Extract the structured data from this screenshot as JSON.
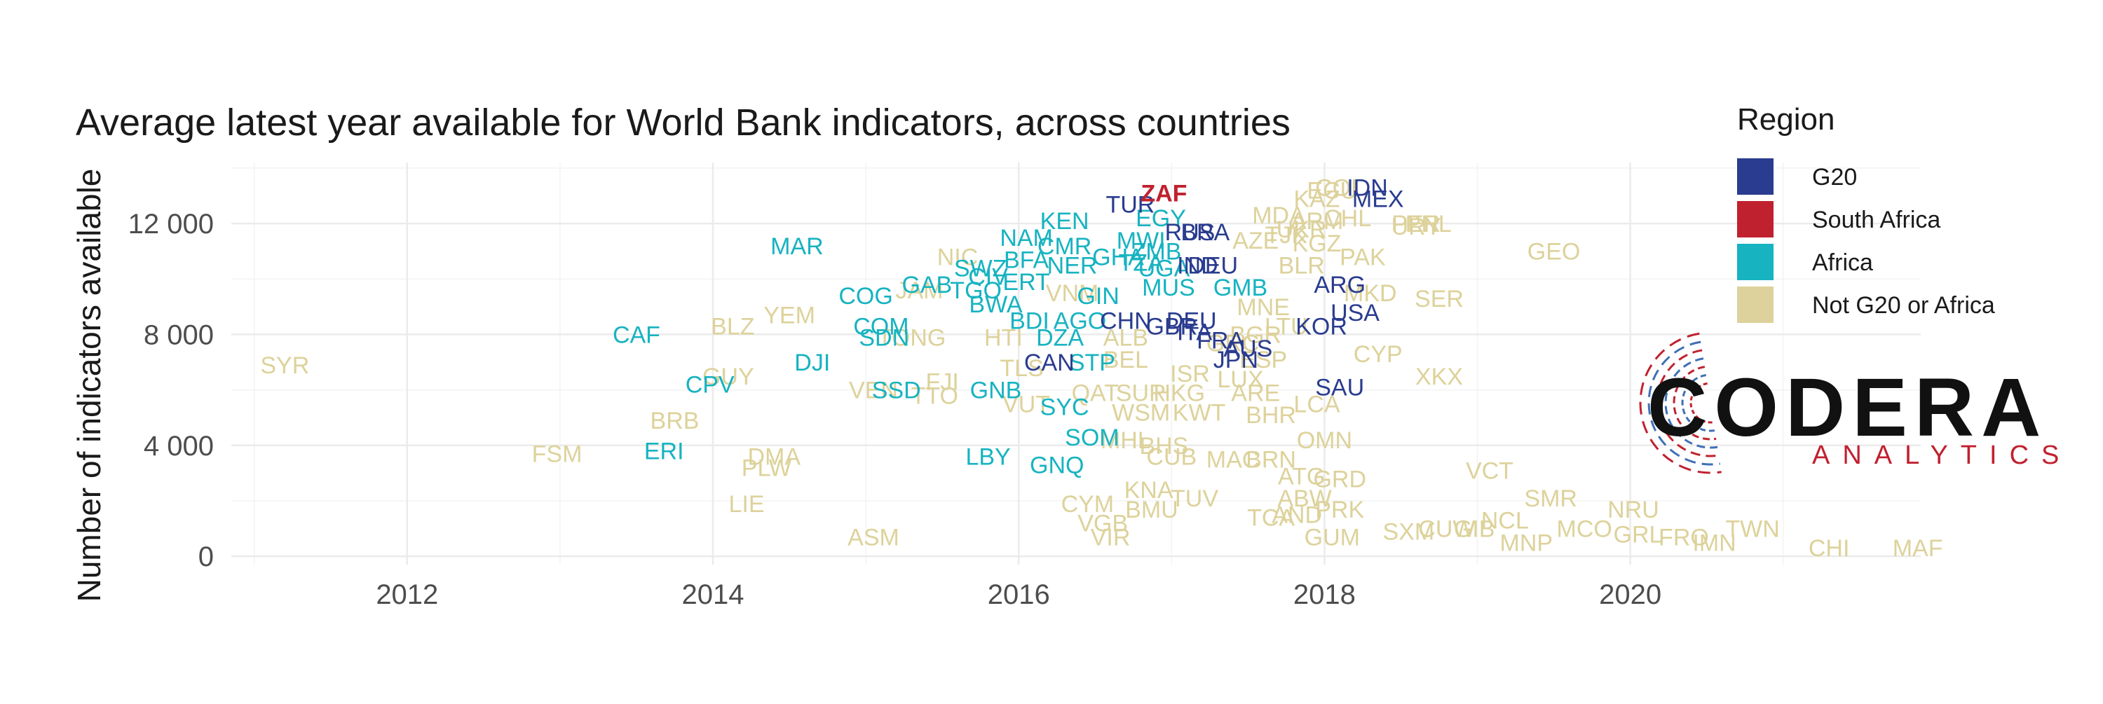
{
  "chart_data": {
    "type": "scatter",
    "title": "Average latest year available for World Bank indicators, across countries",
    "xlabel": "",
    "ylabel": "Number of indicators available",
    "xlim": [
      2010.85,
      2021.9
    ],
    "ylim": [
      -300,
      14200
    ],
    "x_ticks": [
      2012,
      2014,
      2016,
      2018,
      2020
    ],
    "y_ticks": [
      0,
      4000,
      8000,
      12000
    ],
    "y_tick_labels": [
      "0",
      "4 000",
      "8 000",
      "12 000"
    ],
    "grid": true,
    "legend": {
      "title": "Region",
      "position": "right",
      "items": [
        {
          "key": "g20",
          "label": "G20",
          "color": "#2a3c8f"
        },
        {
          "key": "za",
          "label": "South Africa",
          "color": "#c0212f"
        },
        {
          "key": "africa",
          "label": "Africa",
          "color": "#17b3c1"
        },
        {
          "key": "other",
          "label": "Not G20 or Africa",
          "color": "#ddd29b"
        }
      ]
    },
    "points": [
      {
        "label": "ZAF",
        "x": 16.95,
        "y": 13100,
        "g": "za"
      },
      {
        "label": "TUR",
        "x": 16.73,
        "y": 12700,
        "g": "g20"
      },
      {
        "label": "IDN",
        "x": 18.28,
        "y": 13300,
        "g": "g20"
      },
      {
        "label": "MEX",
        "x": 18.35,
        "y": 12900,
        "g": "g20"
      },
      {
        "label": "RUS",
        "x": 17.12,
        "y": 11700,
        "g": "g20"
      },
      {
        "label": "BRA",
        "x": 17.22,
        "y": 11700,
        "g": "g20"
      },
      {
        "label": "IND",
        "x": 17.17,
        "y": 10500,
        "g": "g20"
      },
      {
        "label": "DEU",
        "x": 17.27,
        "y": 10500,
        "g": "g20"
      },
      {
        "label": "ARG",
        "x": 18.1,
        "y": 9800,
        "g": "g20"
      },
      {
        "label": "USA",
        "x": 18.2,
        "y": 8800,
        "g": "g20"
      },
      {
        "label": "KOR",
        "x": 17.98,
        "y": 8300,
        "g": "g20"
      },
      {
        "label": "CHN",
        "x": 16.7,
        "y": 8500,
        "g": "g20"
      },
      {
        "label": "DEU",
        "x": 17.13,
        "y": 8500,
        "g": "g20"
      },
      {
        "label": "GBR",
        "x": 17.0,
        "y": 8300,
        "g": "g20"
      },
      {
        "label": "ITA",
        "x": 17.15,
        "y": 8100,
        "g": "g20"
      },
      {
        "label": "FRA",
        "x": 17.32,
        "y": 7800,
        "g": "g20"
      },
      {
        "label": "AUS",
        "x": 17.5,
        "y": 7500,
        "g": "g20"
      },
      {
        "label": "JPN",
        "x": 17.42,
        "y": 7100,
        "g": "g20"
      },
      {
        "label": "CAN",
        "x": 16.2,
        "y": 7000,
        "g": "g20"
      },
      {
        "label": "SAU",
        "x": 18.1,
        "y": 6100,
        "g": "g20"
      },
      {
        "label": "MAR",
        "x": 14.55,
        "y": 11200,
        "g": "africa"
      },
      {
        "label": "KEN",
        "x": 16.3,
        "y": 12100,
        "g": "africa"
      },
      {
        "label": "EGY",
        "x": 16.93,
        "y": 12200,
        "g": "africa"
      },
      {
        "label": "NAM",
        "x": 16.05,
        "y": 11500,
        "g": "africa"
      },
      {
        "label": "CMR",
        "x": 16.3,
        "y": 11200,
        "g": "africa"
      },
      {
        "label": "BFA",
        "x": 16.05,
        "y": 10700,
        "g": "africa"
      },
      {
        "label": "NER",
        "x": 16.35,
        "y": 10500,
        "g": "africa"
      },
      {
        "label": "SWZ",
        "x": 15.75,
        "y": 10400,
        "g": "africa"
      },
      {
        "label": "CIV",
        "x": 15.8,
        "y": 10100,
        "g": "africa"
      },
      {
        "label": "ERT",
        "x": 16.05,
        "y": 9900,
        "g": "africa"
      },
      {
        "label": "GAB",
        "x": 15.4,
        "y": 9800,
        "g": "africa"
      },
      {
        "label": "COG",
        "x": 15.0,
        "y": 9400,
        "g": "africa"
      },
      {
        "label": "TGO",
        "x": 15.72,
        "y": 9600,
        "g": "africa"
      },
      {
        "label": "BWA",
        "x": 15.85,
        "y": 9100,
        "g": "africa"
      },
      {
        "label": "GIN",
        "x": 16.52,
        "y": 9400,
        "g": "africa"
      },
      {
        "label": "MUS",
        "x": 16.98,
        "y": 9700,
        "g": "africa"
      },
      {
        "label": "GMB",
        "x": 17.45,
        "y": 9700,
        "g": "africa"
      },
      {
        "label": "MWI",
        "x": 16.8,
        "y": 11400,
        "g": "africa"
      },
      {
        "label": "ZMB",
        "x": 16.9,
        "y": 11000,
        "g": "africa"
      },
      {
        "label": "GHA",
        "x": 16.65,
        "y": 10800,
        "g": "africa"
      },
      {
        "label": "TZA",
        "x": 16.8,
        "y": 10600,
        "g": "africa"
      },
      {
        "label": "UGA",
        "x": 16.95,
        "y": 10400,
        "g": "africa"
      },
      {
        "label": "BDI",
        "x": 16.07,
        "y": 8500,
        "g": "africa"
      },
      {
        "label": "AGO",
        "x": 16.4,
        "y": 8500,
        "g": "africa"
      },
      {
        "label": "COM",
        "x": 15.1,
        "y": 8300,
        "g": "africa"
      },
      {
        "label": "SDN",
        "x": 15.12,
        "y": 7900,
        "g": "africa"
      },
      {
        "label": "DZA",
        "x": 16.27,
        "y": 7900,
        "g": "africa"
      },
      {
        "label": "STP",
        "x": 16.48,
        "y": 7000,
        "g": "africa"
      },
      {
        "label": "CAF",
        "x": 13.5,
        "y": 8000,
        "g": "africa"
      },
      {
        "label": "DJI",
        "x": 14.65,
        "y": 7000,
        "g": "africa"
      },
      {
        "label": "CPV",
        "x": 13.98,
        "y": 6200,
        "g": "africa"
      },
      {
        "label": "SSD",
        "x": 15.2,
        "y": 6000,
        "g": "africa"
      },
      {
        "label": "GNB",
        "x": 15.85,
        "y": 6000,
        "g": "africa"
      },
      {
        "label": "SYC",
        "x": 16.3,
        "y": 5400,
        "g": "africa"
      },
      {
        "label": "SOM",
        "x": 16.48,
        "y": 4300,
        "g": "africa"
      },
      {
        "label": "ERI",
        "x": 13.68,
        "y": 3800,
        "g": "africa"
      },
      {
        "label": "LBY",
        "x": 15.8,
        "y": 3600,
        "g": "africa"
      },
      {
        "label": "GNQ",
        "x": 16.25,
        "y": 3300,
        "g": "africa"
      },
      {
        "label": "SYR",
        "x": 11.2,
        "y": 6900,
        "g": "other"
      },
      {
        "label": "FSM",
        "x": 12.98,
        "y": 3700,
        "g": "other"
      },
      {
        "label": "BRB",
        "x": 13.75,
        "y": 4900,
        "g": "other"
      },
      {
        "label": "GUY",
        "x": 14.1,
        "y": 6500,
        "g": "other"
      },
      {
        "label": "BLZ",
        "x": 14.13,
        "y": 8300,
        "g": "other"
      },
      {
        "label": "YEM",
        "x": 14.5,
        "y": 8700,
        "g": "other"
      },
      {
        "label": "DMA",
        "x": 14.4,
        "y": 3600,
        "g": "other"
      },
      {
        "label": "PLW",
        "x": 14.35,
        "y": 3200,
        "g": "other"
      },
      {
        "label": "LIE",
        "x": 14.22,
        "y": 1900,
        "g": "other"
      },
      {
        "label": "ASM",
        "x": 15.05,
        "y": 700,
        "g": "other"
      },
      {
        "label": "NIC",
        "x": 15.6,
        "y": 10800,
        "g": "other"
      },
      {
        "label": "JAM",
        "x": 15.35,
        "y": 9600,
        "g": "other"
      },
      {
        "label": "TONG",
        "x": 15.3,
        "y": 7900,
        "g": "other"
      },
      {
        "label": "VEN",
        "x": 15.05,
        "y": 6000,
        "g": "other"
      },
      {
        "label": "FJI",
        "x": 15.5,
        "y": 6300,
        "g": "other"
      },
      {
        "label": "TTO",
        "x": 15.45,
        "y": 5800,
        "g": "other"
      },
      {
        "label": "HTI",
        "x": 15.9,
        "y": 7900,
        "g": "other"
      },
      {
        "label": "TLS",
        "x": 16.02,
        "y": 6800,
        "g": "other"
      },
      {
        "label": "VUT",
        "x": 16.05,
        "y": 5500,
        "g": "other"
      },
      {
        "label": "VNM",
        "x": 16.35,
        "y": 9500,
        "g": "other"
      },
      {
        "label": "ALB",
        "x": 16.7,
        "y": 7900,
        "g": "other"
      },
      {
        "label": "BEL",
        "x": 16.7,
        "y": 7100,
        "g": "other"
      },
      {
        "label": "QAT",
        "x": 16.5,
        "y": 5900,
        "g": "other"
      },
      {
        "label": "SUR",
        "x": 16.8,
        "y": 5900,
        "g": "other"
      },
      {
        "label": "HKG",
        "x": 17.05,
        "y": 5900,
        "g": "other"
      },
      {
        "label": "ISR",
        "x": 17.12,
        "y": 6600,
        "g": "other"
      },
      {
        "label": "WSM",
        "x": 16.8,
        "y": 5200,
        "g": "other"
      },
      {
        "label": "KWT",
        "x": 17.18,
        "y": 5200,
        "g": "other"
      },
      {
        "label": "MHL",
        "x": 16.7,
        "y": 4200,
        "g": "other"
      },
      {
        "label": "BHS",
        "x": 16.95,
        "y": 4000,
        "g": "other"
      },
      {
        "label": "CUB",
        "x": 17.0,
        "y": 3600,
        "g": "other"
      },
      {
        "label": "MAC",
        "x": 17.4,
        "y": 3500,
        "g": "other"
      },
      {
        "label": "BRN",
        "x": 17.65,
        "y": 3500,
        "g": "other"
      },
      {
        "label": "KNA",
        "x": 16.85,
        "y": 2400,
        "g": "other"
      },
      {
        "label": "TUV",
        "x": 17.15,
        "y": 2100,
        "g": "other"
      },
      {
        "label": "CYM",
        "x": 16.45,
        "y": 1900,
        "g": "other"
      },
      {
        "label": "BMU",
        "x": 16.87,
        "y": 1700,
        "g": "other"
      },
      {
        "label": "VGB",
        "x": 16.55,
        "y": 1200,
        "g": "other"
      },
      {
        "label": "VIR",
        "x": 16.6,
        "y": 700,
        "g": "other"
      },
      {
        "label": "ARE",
        "x": 17.55,
        "y": 5900,
        "g": "other"
      },
      {
        "label": "BHR",
        "x": 17.65,
        "y": 5100,
        "g": "other"
      },
      {
        "label": "LCA",
        "x": 17.95,
        "y": 5500,
        "g": "other"
      },
      {
        "label": "OMN",
        "x": 18.0,
        "y": 4200,
        "g": "other"
      },
      {
        "label": "ATG",
        "x": 17.85,
        "y": 2900,
        "g": "other"
      },
      {
        "label": "GRD",
        "x": 18.1,
        "y": 2800,
        "g": "other"
      },
      {
        "label": "ABW",
        "x": 17.87,
        "y": 2100,
        "g": "other"
      },
      {
        "label": "PRK",
        "x": 18.1,
        "y": 1700,
        "g": "other"
      },
      {
        "label": "TCA",
        "x": 17.65,
        "y": 1400,
        "g": "other"
      },
      {
        "label": "AND",
        "x": 17.82,
        "y": 1500,
        "g": "other"
      },
      {
        "label": "GUM",
        "x": 18.05,
        "y": 700,
        "g": "other"
      },
      {
        "label": "SXM",
        "x": 18.55,
        "y": 900,
        "g": "other"
      },
      {
        "label": "CUW",
        "x": 18.8,
        "y": 1000,
        "g": "other"
      },
      {
        "label": "GIB",
        "x": 18.98,
        "y": 1000,
        "g": "other"
      },
      {
        "label": "NCL",
        "x": 19.18,
        "y": 1300,
        "g": "other"
      },
      {
        "label": "MNP",
        "x": 19.32,
        "y": 500,
        "g": "other"
      },
      {
        "label": "MCO",
        "x": 19.7,
        "y": 1000,
        "g": "other"
      },
      {
        "label": "SMR",
        "x": 19.48,
        "y": 2100,
        "g": "other"
      },
      {
        "label": "VCT",
        "x": 19.08,
        "y": 3100,
        "g": "other"
      },
      {
        "label": "NRU",
        "x": 20.02,
        "y": 1700,
        "g": "other"
      },
      {
        "label": "GRL",
        "x": 20.05,
        "y": 800,
        "g": "other"
      },
      {
        "label": "FRO",
        "x": 20.35,
        "y": 700,
        "g": "other"
      },
      {
        "label": "IMN",
        "x": 20.55,
        "y": 500,
        "g": "other"
      },
      {
        "label": "TWN",
        "x": 20.8,
        "y": 1000,
        "g": "other"
      },
      {
        "label": "CHI",
        "x": 21.3,
        "y": 300,
        "g": "other"
      },
      {
        "label": "MAF",
        "x": 21.88,
        "y": 300,
        "g": "other"
      },
      {
        "label": "CYP",
        "x": 18.35,
        "y": 7300,
        "g": "other"
      },
      {
        "label": "XKX",
        "x": 18.75,
        "y": 6500,
        "g": "other"
      },
      {
        "label": "GEO",
        "x": 19.5,
        "y": 11000,
        "g": "other"
      },
      {
        "label": "MDA",
        "x": 17.7,
        "y": 12300,
        "g": "other"
      },
      {
        "label": "ARM",
        "x": 17.95,
        "y": 12100,
        "g": "other"
      },
      {
        "label": "CHL",
        "x": 18.15,
        "y": 12200,
        "g": "other"
      },
      {
        "label": "PER",
        "x": 18.6,
        "y": 12000,
        "g": "other"
      },
      {
        "label": "URY",
        "x": 18.6,
        "y": 11900,
        "g": "other"
      },
      {
        "label": "PHL",
        "x": 18.68,
        "y": 12000,
        "g": "other"
      },
      {
        "label": "ECU",
        "x": 18.05,
        "y": 13200,
        "g": "other"
      },
      {
        "label": "COL",
        "x": 18.1,
        "y": 13300,
        "g": "other"
      },
      {
        "label": "KAZ",
        "x": 17.95,
        "y": 12900,
        "g": "other"
      },
      {
        "label": "KGZ",
        "x": 17.95,
        "y": 11300,
        "g": "other"
      },
      {
        "label": "PAK",
        "x": 18.25,
        "y": 10800,
        "g": "other"
      },
      {
        "label": "BLR",
        "x": 17.85,
        "y": 10500,
        "g": "other"
      },
      {
        "label": "MKD",
        "x": 18.3,
        "y": 9500,
        "g": "other"
      },
      {
        "label": "SER",
        "x": 18.75,
        "y": 9300,
        "g": "other"
      },
      {
        "label": "MNE",
        "x": 17.6,
        "y": 9000,
        "g": "other"
      },
      {
        "label": "LTU",
        "x": 17.75,
        "y": 8300,
        "g": "other"
      },
      {
        "label": "BGR",
        "x": 17.55,
        "y": 8000,
        "g": "other"
      },
      {
        "label": "GRC",
        "x": 17.4,
        "y": 7700,
        "g": "other"
      },
      {
        "label": "ESP",
        "x": 17.6,
        "y": 7100,
        "g": "other"
      },
      {
        "label": "LUX",
        "x": 17.45,
        "y": 6400,
        "g": "other"
      },
      {
        "label": "TJK",
        "x": 17.75,
        "y": 11600,
        "g": "other"
      },
      {
        "label": "UKR",
        "x": 17.85,
        "y": 11800,
        "g": "other"
      },
      {
        "label": "AZE",
        "x": 17.55,
        "y": 11400,
        "g": "other"
      }
    ]
  },
  "logo": {
    "name": "CODERA",
    "tagline": "ANALYTICS",
    "colors": {
      "dark": "#111111",
      "accent_red": "#c0212f",
      "accent_blue": "#3f6fb5"
    }
  }
}
